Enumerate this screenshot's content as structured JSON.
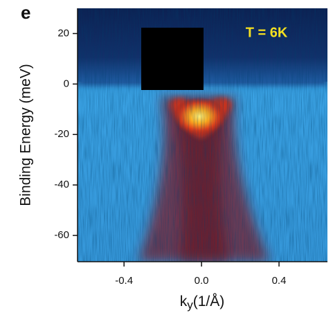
{
  "chart_data": {
    "type": "heatmap",
    "panel_label": "e",
    "annotation": "T = 6K",
    "ylabel": "Binding Energy (meV)",
    "xlabel": "k",
    "xlabel_sub": "y",
    "xlabel_unit": "(1/Å)",
    "xlim": [
      -0.64,
      0.65
    ],
    "ylim": [
      -70.4,
      30
    ],
    "xticks": [
      -0.4,
      {
        "value": 0,
        "label": "0.0"
      },
      0.4
    ],
    "yticks": [
      20,
      0,
      -20,
      -40,
      -60
    ]
  }
}
